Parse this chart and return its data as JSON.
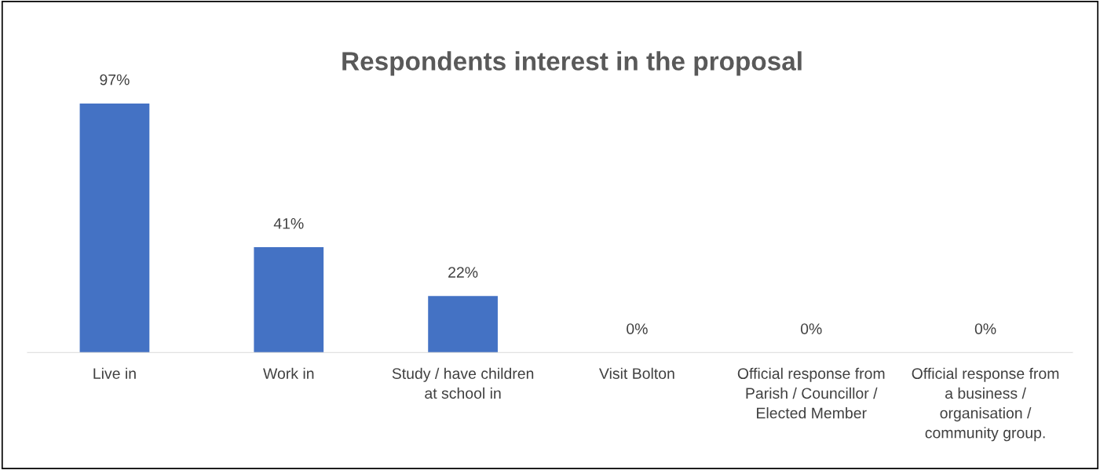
{
  "chart_data": {
    "type": "bar",
    "title": "Respondents interest in the proposal",
    "categories": [
      "Live in",
      "Work in",
      "Study / have children\nat school in",
      "Visit Bolton",
      "Official response from\nParish / Councillor /\nElected Member",
      "Official response from\na business /\norganisation /\ncommunity group."
    ],
    "values": [
      97,
      41,
      22,
      0,
      0,
      0
    ],
    "value_labels": [
      "97%",
      "41%",
      "22%",
      "0%",
      "0%",
      "0%"
    ],
    "color": "#4472c4",
    "grid": false,
    "legend": false
  }
}
